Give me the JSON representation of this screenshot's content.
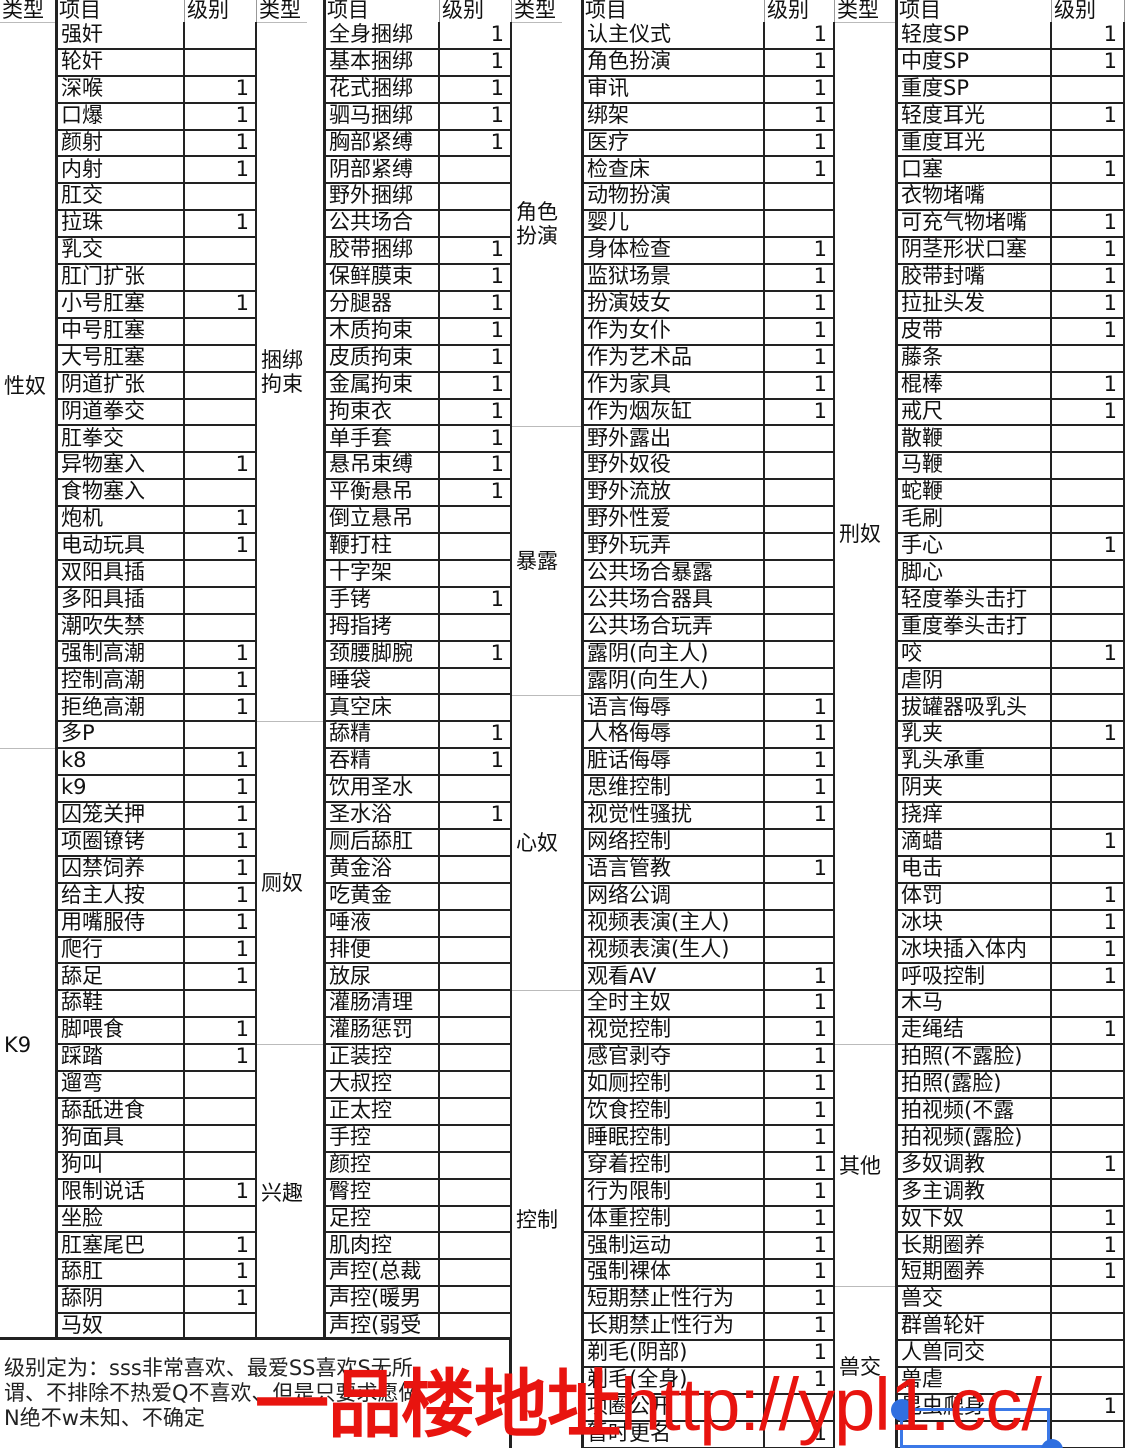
{
  "header": {
    "type": "类型",
    "item": "项目",
    "level": "级别"
  },
  "columns": [
    {
      "groups": [
        {
          "type": "性奴",
          "items": [
            [
              "强奸",
              ""
            ],
            [
              "轮奸",
              ""
            ],
            [
              "深喉",
              "1"
            ],
            [
              "口爆",
              "1"
            ],
            [
              "颜射",
              "1"
            ],
            [
              "内射",
              "1"
            ],
            [
              "肛交",
              ""
            ],
            [
              "拉珠",
              "1"
            ],
            [
              "乳交",
              ""
            ],
            [
              "肛门扩张",
              ""
            ],
            [
              "小号肛塞",
              "1"
            ],
            [
              "中号肛塞",
              ""
            ],
            [
              "大号肛塞",
              ""
            ],
            [
              "阴道扩张",
              ""
            ],
            [
              "阴道拳交",
              ""
            ],
            [
              "肛拳交",
              ""
            ],
            [
              "异物塞入",
              "1"
            ],
            [
              "食物塞入",
              ""
            ],
            [
              "炮机",
              "1"
            ],
            [
              "电动玩具",
              "1"
            ],
            [
              "双阳具插",
              ""
            ],
            [
              "多阳具插",
              ""
            ],
            [
              "潮吹失禁",
              ""
            ],
            [
              "强制高潮",
              "1"
            ],
            [
              "控制高潮",
              "1"
            ],
            [
              "拒绝高潮",
              "1"
            ],
            [
              "多P",
              ""
            ]
          ]
        },
        {
          "type": "K9",
          "items": [
            [
              "k8",
              "1"
            ],
            [
              "k9",
              "1"
            ],
            [
              "囚笼关押",
              "1"
            ],
            [
              "项圈镣铐",
              "1"
            ],
            [
              "囚禁饲养",
              "1"
            ],
            [
              "给主人按",
              "1"
            ],
            [
              "用嘴服侍",
              "1"
            ],
            [
              "爬行",
              "1"
            ],
            [
              "舔足",
              "1"
            ],
            [
              "舔鞋",
              ""
            ],
            [
              "脚喂食",
              "1"
            ],
            [
              "踩踏",
              "1"
            ],
            [
              "遛弯",
              ""
            ],
            [
              "舔舐进食",
              ""
            ],
            [
              "狗面具",
              ""
            ],
            [
              "狗叫",
              ""
            ],
            [
              "限制说话",
              "1"
            ],
            [
              "坐脸",
              ""
            ],
            [
              "肛塞尾巴",
              "1"
            ],
            [
              "舔肛",
              "1"
            ],
            [
              "舔阴",
              "1"
            ],
            [
              "马奴",
              ""
            ]
          ]
        }
      ]
    },
    {
      "groups": [
        {
          "type": "捆绑拘束",
          "items": [
            [
              "全身捆绑",
              "1"
            ],
            [
              "基本捆绑",
              "1"
            ],
            [
              "花式捆绑",
              "1"
            ],
            [
              "驷马捆绑",
              "1"
            ],
            [
              "胸部紧缚",
              "1"
            ],
            [
              "阴部紧缚",
              ""
            ],
            [
              "野外捆绑",
              ""
            ],
            [
              "公共场合",
              ""
            ],
            [
              "胶带捆绑",
              "1"
            ],
            [
              "保鲜膜束",
              "1"
            ],
            [
              "分腿器",
              "1"
            ],
            [
              "木质拘束",
              "1"
            ],
            [
              "皮质拘束",
              "1"
            ],
            [
              "金属拘束",
              "1"
            ],
            [
              "拘束衣",
              "1"
            ],
            [
              "单手套",
              "1"
            ],
            [
              "悬吊束缚",
              "1"
            ],
            [
              "平衡悬吊",
              "1"
            ],
            [
              "倒立悬吊",
              ""
            ],
            [
              "鞭打柱",
              ""
            ],
            [
              "十字架",
              ""
            ],
            [
              "手铐",
              "1"
            ],
            [
              "拇指拷",
              ""
            ],
            [
              "颈腰脚腕",
              "1"
            ],
            [
              "睡袋",
              ""
            ],
            [
              "真空床",
              ""
            ]
          ]
        },
        {
          "type": "厕奴",
          "items": [
            [
              "舔精",
              "1"
            ],
            [
              "吞精",
              "1"
            ],
            [
              "饮用圣水",
              ""
            ],
            [
              "圣水浴",
              "1"
            ],
            [
              "厕后舔肛",
              ""
            ],
            [
              "黄金浴",
              ""
            ],
            [
              "吃黄金",
              ""
            ],
            [
              "唾液",
              ""
            ],
            [
              "排便",
              ""
            ],
            [
              "放尿",
              ""
            ],
            [
              "灌肠清理",
              ""
            ],
            [
              "灌肠惩罚",
              ""
            ]
          ]
        },
        {
          "type": "兴趣",
          "items": [
            [
              "正装控",
              ""
            ],
            [
              "大叔控",
              ""
            ],
            [
              "正太控",
              ""
            ],
            [
              "手控",
              ""
            ],
            [
              "颜控",
              ""
            ],
            [
              "臀控",
              ""
            ],
            [
              "足控",
              ""
            ],
            [
              "肌肉控",
              ""
            ],
            [
              "声控(总裁",
              ""
            ],
            [
              "声控(暖男",
              ""
            ],
            [
              "声控(弱受",
              ""
            ]
          ]
        }
      ]
    },
    {
      "groups": [
        {
          "type": "角色扮演",
          "items": [
            [
              "认主仪式",
              "1"
            ],
            [
              "角色扮演",
              "1"
            ],
            [
              "审讯",
              "1"
            ],
            [
              "绑架",
              "1"
            ],
            [
              "医疗",
              "1"
            ],
            [
              "检查床",
              "1"
            ],
            [
              "动物扮演",
              ""
            ],
            [
              "婴儿",
              ""
            ],
            [
              "身体检查",
              "1"
            ],
            [
              "监狱场景",
              "1"
            ],
            [
              "扮演妓女",
              "1"
            ],
            [
              "作为女仆",
              "1"
            ],
            [
              "作为艺术品",
              "1"
            ],
            [
              "作为家具",
              "1"
            ],
            [
              "作为烟灰缸",
              "1"
            ]
          ]
        },
        {
          "type": "暴露",
          "items": [
            [
              "野外露出",
              ""
            ],
            [
              "野外奴役",
              ""
            ],
            [
              "野外流放",
              ""
            ],
            [
              "野外性爱",
              ""
            ],
            [
              "野外玩弄",
              ""
            ],
            [
              "公共场合暴露",
              ""
            ],
            [
              "公共场合器具",
              ""
            ],
            [
              "公共场合玩弄",
              ""
            ],
            [
              "露阴(向主人)",
              ""
            ],
            [
              "露阴(向生人)",
              ""
            ]
          ]
        },
        {
          "type": "心奴",
          "items": [
            [
              "语言侮辱",
              "1"
            ],
            [
              "人格侮辱",
              "1"
            ],
            [
              "脏话侮辱",
              "1"
            ],
            [
              "思维控制",
              "1"
            ],
            [
              "视觉性骚扰",
              "1"
            ],
            [
              "网络控制",
              ""
            ],
            [
              "语言管教",
              "1"
            ],
            [
              "网络公调",
              ""
            ],
            [
              "视频表演(主人)",
              ""
            ],
            [
              "视频表演(生人)",
              ""
            ],
            [
              "观看AV",
              "1"
            ]
          ]
        },
        {
          "type": "控制",
          "items": [
            [
              "全时主奴",
              "1"
            ],
            [
              "视觉控制",
              "1"
            ],
            [
              "感官剥夺",
              "1"
            ],
            [
              "如厕控制",
              "1"
            ],
            [
              "饮食控制",
              "1"
            ],
            [
              "睡眠控制",
              "1"
            ],
            [
              "穿着控制",
              "1"
            ],
            [
              "行为限制",
              "1"
            ],
            [
              "体重控制",
              "1"
            ],
            [
              "强制运动",
              "1"
            ],
            [
              "强制裸体",
              "1"
            ],
            [
              "短期禁止性行为",
              "1"
            ],
            [
              "长期禁止性行为",
              "1"
            ],
            [
              "剃毛(阴部)",
              "1"
            ],
            [
              "剃毛(全身)",
              "1"
            ],
            [
              "项圈公开",
              ""
            ],
            [
              "暂时更名",
              "1"
            ]
          ]
        }
      ]
    },
    {
      "groups": [
        {
          "type": "刑奴",
          "items": [
            [
              "轻度SP",
              "1"
            ],
            [
              "中度SP",
              "1"
            ],
            [
              "重度SP",
              ""
            ],
            [
              "轻度耳光",
              "1"
            ],
            [
              "重度耳光",
              ""
            ],
            [
              "口塞",
              "1"
            ],
            [
              "衣物堵嘴",
              ""
            ],
            [
              "可充气物堵嘴",
              "1"
            ],
            [
              "阴茎形状口塞",
              "1"
            ],
            [
              "胶带封嘴",
              "1"
            ],
            [
              "拉扯头发",
              "1"
            ],
            [
              "皮带",
              "1"
            ],
            [
              "藤条",
              ""
            ],
            [
              "棍棒",
              "1"
            ],
            [
              "戒尺",
              "1"
            ],
            [
              "散鞭",
              ""
            ],
            [
              "马鞭",
              ""
            ],
            [
              "蛇鞭",
              ""
            ],
            [
              "毛刷",
              ""
            ],
            [
              "手心",
              "1"
            ],
            [
              "脚心",
              ""
            ],
            [
              "轻度拳头击打",
              ""
            ],
            [
              "重度拳头击打",
              ""
            ],
            [
              "咬",
              "1"
            ],
            [
              "虐阴",
              ""
            ],
            [
              "拔罐器吸乳头",
              ""
            ],
            [
              "乳夹",
              "1"
            ],
            [
              "乳头承重",
              ""
            ],
            [
              "阴夹",
              ""
            ],
            [
              "挠痒",
              ""
            ],
            [
              "滴蜡",
              "1"
            ],
            [
              "电击",
              ""
            ],
            [
              "体罚",
              "1"
            ],
            [
              "冰块",
              "1"
            ],
            [
              "冰块插入体内",
              "1"
            ],
            [
              "呼吸控制",
              "1"
            ],
            [
              "木马",
              ""
            ],
            [
              "走绳结",
              "1"
            ]
          ]
        },
        {
          "type": "其他",
          "items": [
            [
              "拍照(不露脸)",
              ""
            ],
            [
              "拍照(露脸)",
              ""
            ],
            [
              "拍视频(不露",
              ""
            ],
            [
              "拍视频(露脸)",
              ""
            ],
            [
              "多奴调教",
              "1"
            ],
            [
              "多主调教",
              ""
            ],
            [
              "奴下奴",
              "1"
            ],
            [
              "长期圈养",
              "1"
            ],
            [
              "短期圈养",
              "1"
            ]
          ]
        },
        {
          "type": "兽交",
          "items": [
            [
              "兽交",
              ""
            ],
            [
              "群兽轮奸",
              ""
            ],
            [
              "人兽同交",
              ""
            ],
            [
              "兽虐",
              ""
            ],
            [
              "昆虫爬身",
              "1"
            ],
            [
              "",
              ""
            ]
          ]
        }
      ]
    }
  ],
  "note": {
    "lines": [
      "级别定为：sss非常喜欢、最爱SS喜欢S无所",
      "谓、不排除不热爱Q不喜欢、但是只要求愿做",
      "N绝不w未知、不确定"
    ]
  },
  "watermark": {
    "text": "一品楼地址",
    "url": "http://ypl1.cc/"
  },
  "colors": {
    "grid": "#222222",
    "watermark": "#e8140f",
    "selection": "#3b78e7"
  }
}
